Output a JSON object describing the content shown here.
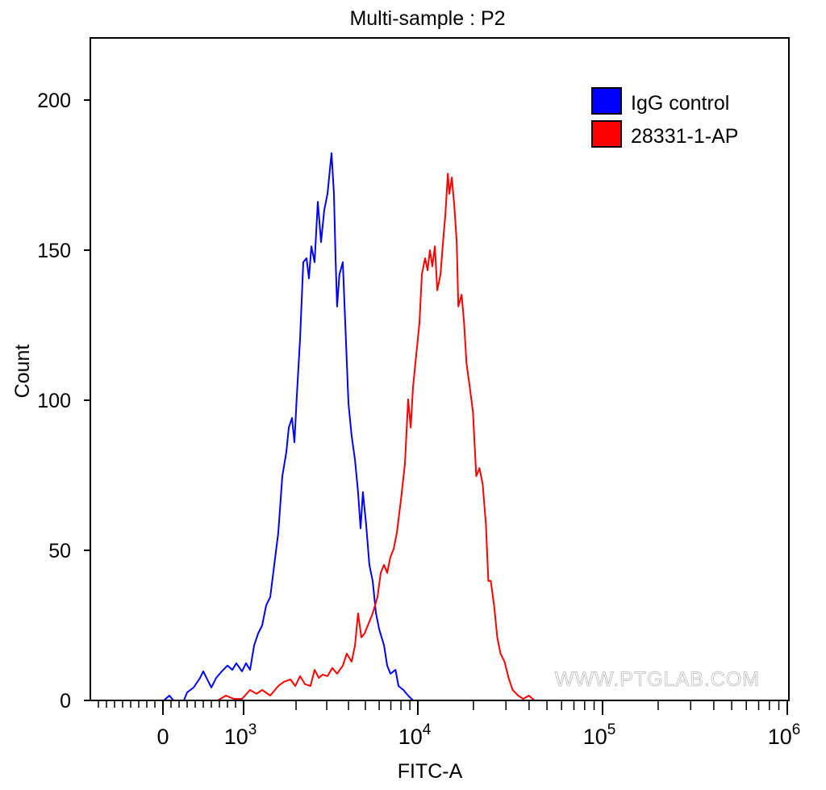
{
  "chart_data": {
    "type": "line",
    "title": "Multi-sample : P2",
    "xlabel": "FITC-A",
    "ylabel": "Count",
    "x_scale": "biexponential",
    "xlim": [
      -900,
      1000000
    ],
    "ylim": [
      0,
      220
    ],
    "x_ticks": [
      {
        "value": 0,
        "base": "0",
        "exp": ""
      },
      {
        "value": 1000,
        "base": "10",
        "exp": "3"
      },
      {
        "value": 10000,
        "base": "10",
        "exp": "4"
      },
      {
        "value": 100000,
        "base": "10",
        "exp": "5"
      },
      {
        "value": 1000000,
        "base": "10",
        "exp": "6"
      }
    ],
    "y_ticks": [
      0,
      50,
      100,
      150,
      200
    ],
    "grid": false,
    "legend_position": "top-right",
    "watermark": "WWW.PTGLAB.COM",
    "series": [
      {
        "name": "IgG control",
        "color": "#0000ff",
        "x": [
          10,
          80,
          130,
          260,
          300,
          380,
          460,
          500,
          540,
          600,
          660,
          730,
          800,
          860,
          910,
          980,
          1032,
          1089,
          1149,
          1212,
          1278,
          1348,
          1421,
          1499,
          1581,
          1668,
          1759,
          1817,
          1896,
          1958,
          2021,
          2109,
          2200,
          2296,
          2371,
          2448,
          2555,
          2667,
          2783,
          2904,
          3031,
          3196,
          3300,
          3370,
          3440,
          3550,
          3710,
          3830,
          4000,
          4170,
          4360,
          4540,
          4690,
          4840,
          5050,
          5270,
          5505,
          5750,
          6000,
          6400,
          6670,
          6960,
          7440,
          7740,
          8260,
          8800,
          9380
        ],
        "y": [
          0,
          1.6,
          0,
          0,
          2.7,
          4.3,
          7.5,
          9.7,
          7.5,
          4.3,
          7.5,
          9.7,
          11.6,
          10.2,
          12.4,
          9.7,
          12.4,
          10.2,
          18.3,
          22.3,
          25,
          31.7,
          34.4,
          45.2,
          55.9,
          74.7,
          82.8,
          90.9,
          94.1,
          86,
          101.6,
          120.4,
          146,
          147.3,
          140.6,
          151.3,
          146,
          166.1,
          152.7,
          163.4,
          168.8,
          182.3,
          168.8,
          147.3,
          131.2,
          141.9,
          146,
          125.8,
          98.9,
          88.2,
          80.1,
          69.4,
          57.3,
          69.4,
          58.6,
          45.2,
          39.8,
          29,
          23.7,
          18.3,
          11.6,
          8.9,
          10.2,
          4.8,
          3.5,
          1.6,
          0
        ]
      },
      {
        "name": "28331-1-AP",
        "color": "#ff0000",
        "x": [
          680,
          780,
          880,
          980,
          1089,
          1186,
          1278,
          1421,
          1581,
          1704,
          1855,
          1980,
          2109,
          2250,
          2420,
          2555,
          2700,
          2840,
          3031,
          3230,
          3440,
          3710,
          3910,
          4170,
          4360,
          4540,
          4740,
          4948,
          5270,
          5505,
          5870,
          6124,
          6400,
          6670,
          6960,
          7270,
          7579,
          7990,
          8432,
          8800,
          9100,
          9380,
          9790,
          10200,
          10520,
          10950,
          11290,
          11630,
          11990,
          12360,
          12740,
          13270,
          13680,
          14100,
          14530,
          14820,
          15270,
          15750,
          16230,
          16570,
          17260,
          17800,
          18330,
          19100,
          19870,
          20700,
          21550,
          22440,
          23370,
          24090,
          24820,
          25850,
          26920,
          28030,
          29470,
          30990,
          32580,
          34950,
          37180,
          39900,
          42800
        ],
        "y": [
          0,
          1.6,
          0.5,
          0.5,
          3.5,
          2.2,
          3.5,
          1.6,
          4.8,
          6.2,
          7,
          4.8,
          8.1,
          5.4,
          4.8,
          10.2,
          7.5,
          8.6,
          8.1,
          10.8,
          8.9,
          11.6,
          15.6,
          12.9,
          18.3,
          29,
          21,
          22.3,
          26.3,
          29,
          34.4,
          42.5,
          45.2,
          42.5,
          47.8,
          50.5,
          55.9,
          66.7,
          78.8,
          100.3,
          90.9,
          104.3,
          115.1,
          125.8,
          141.9,
          147.3,
          143.3,
          150,
          144.6,
          151.3,
          136.6,
          141.9,
          152.7,
          162.1,
          175.5,
          168.8,
          174.2,
          164.8,
          152.7,
          131.2,
          135.2,
          125.8,
          112.4,
          104.3,
          96.2,
          74.7,
          77.4,
          72,
          58.6,
          39.8,
          39.8,
          31.7,
          21,
          15.6,
          12.9,
          7.5,
          3.5,
          1.6,
          0.5,
          1.6,
          0
        ]
      }
    ]
  }
}
